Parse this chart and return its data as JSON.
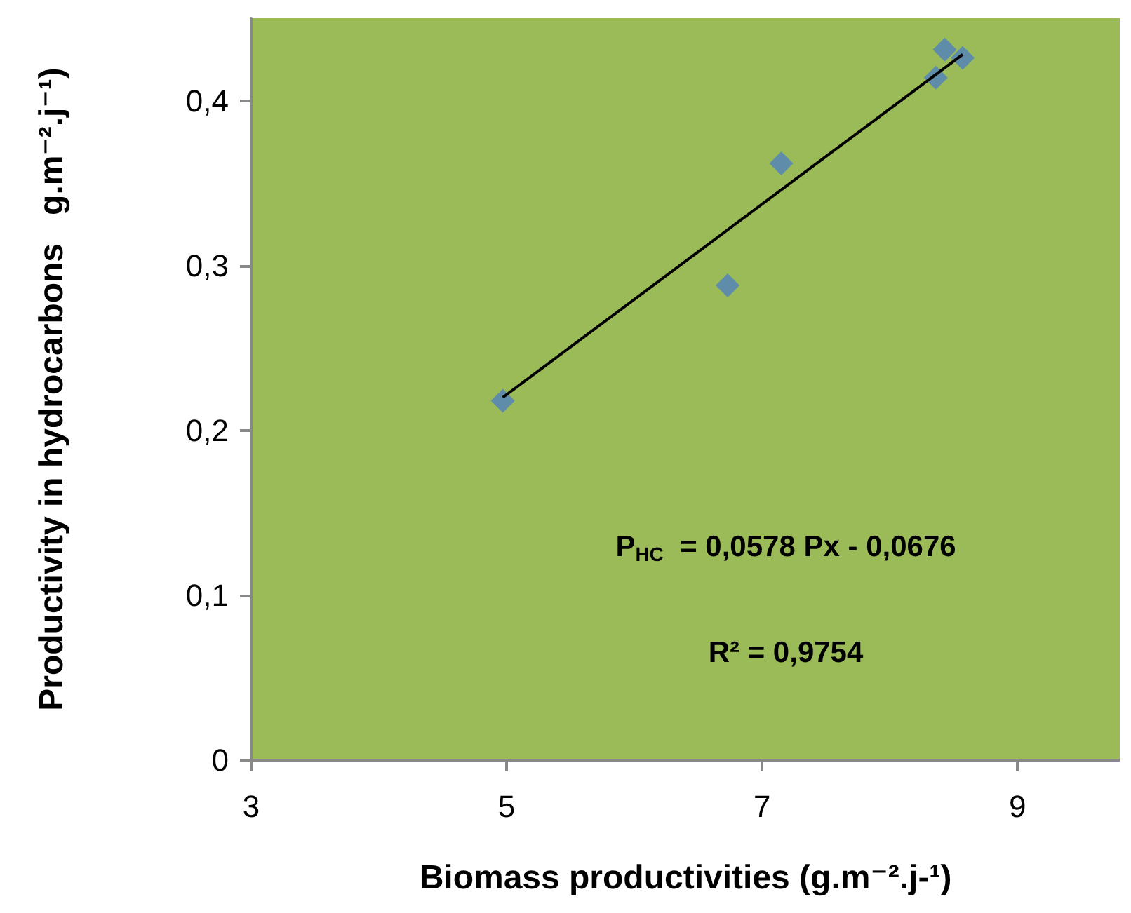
{
  "chart_data": {
    "type": "scatter",
    "xlabel": "Biomass productivities (g.m⁻².j-¹)",
    "ylabel": "Productivity in hydrocarbons   g.m⁻².j⁻¹)",
    "x": [
      4.97,
      6.73,
      7.15,
      8.36,
      8.43,
      8.57
    ],
    "series": [
      {
        "color": "#4f81bd",
        "values": [
          0.218,
          0.288,
          0.362,
          0.414,
          0.431,
          0.426
        ],
        "marker": "diamond"
      },
      {
        "type": "line",
        "color": "#000000",
        "x": [
          4.97,
          8.57
        ],
        "values": [
          0.22,
          0.428
        ],
        "marker": "none",
        "line_style": "solid"
      }
    ],
    "xlim": [
      3,
      9.8
    ],
    "xticks": [
      3,
      5,
      7,
      9
    ],
    "ylim": [
      0,
      0.45
    ],
    "yticks": [
      0,
      {
        "value": 0.1,
        "label": "0,1"
      },
      {
        "value": 0.2,
        "label": "0,2"
      },
      {
        "value": 0.3,
        "label": "0,3"
      },
      {
        "value": 0.4,
        "label": "0,4"
      }
    ],
    "annotations": [
      "P$_{HC}$  = 0,0578 Px - 0,0676",
      "R² = 0,9754"
    ]
  }
}
